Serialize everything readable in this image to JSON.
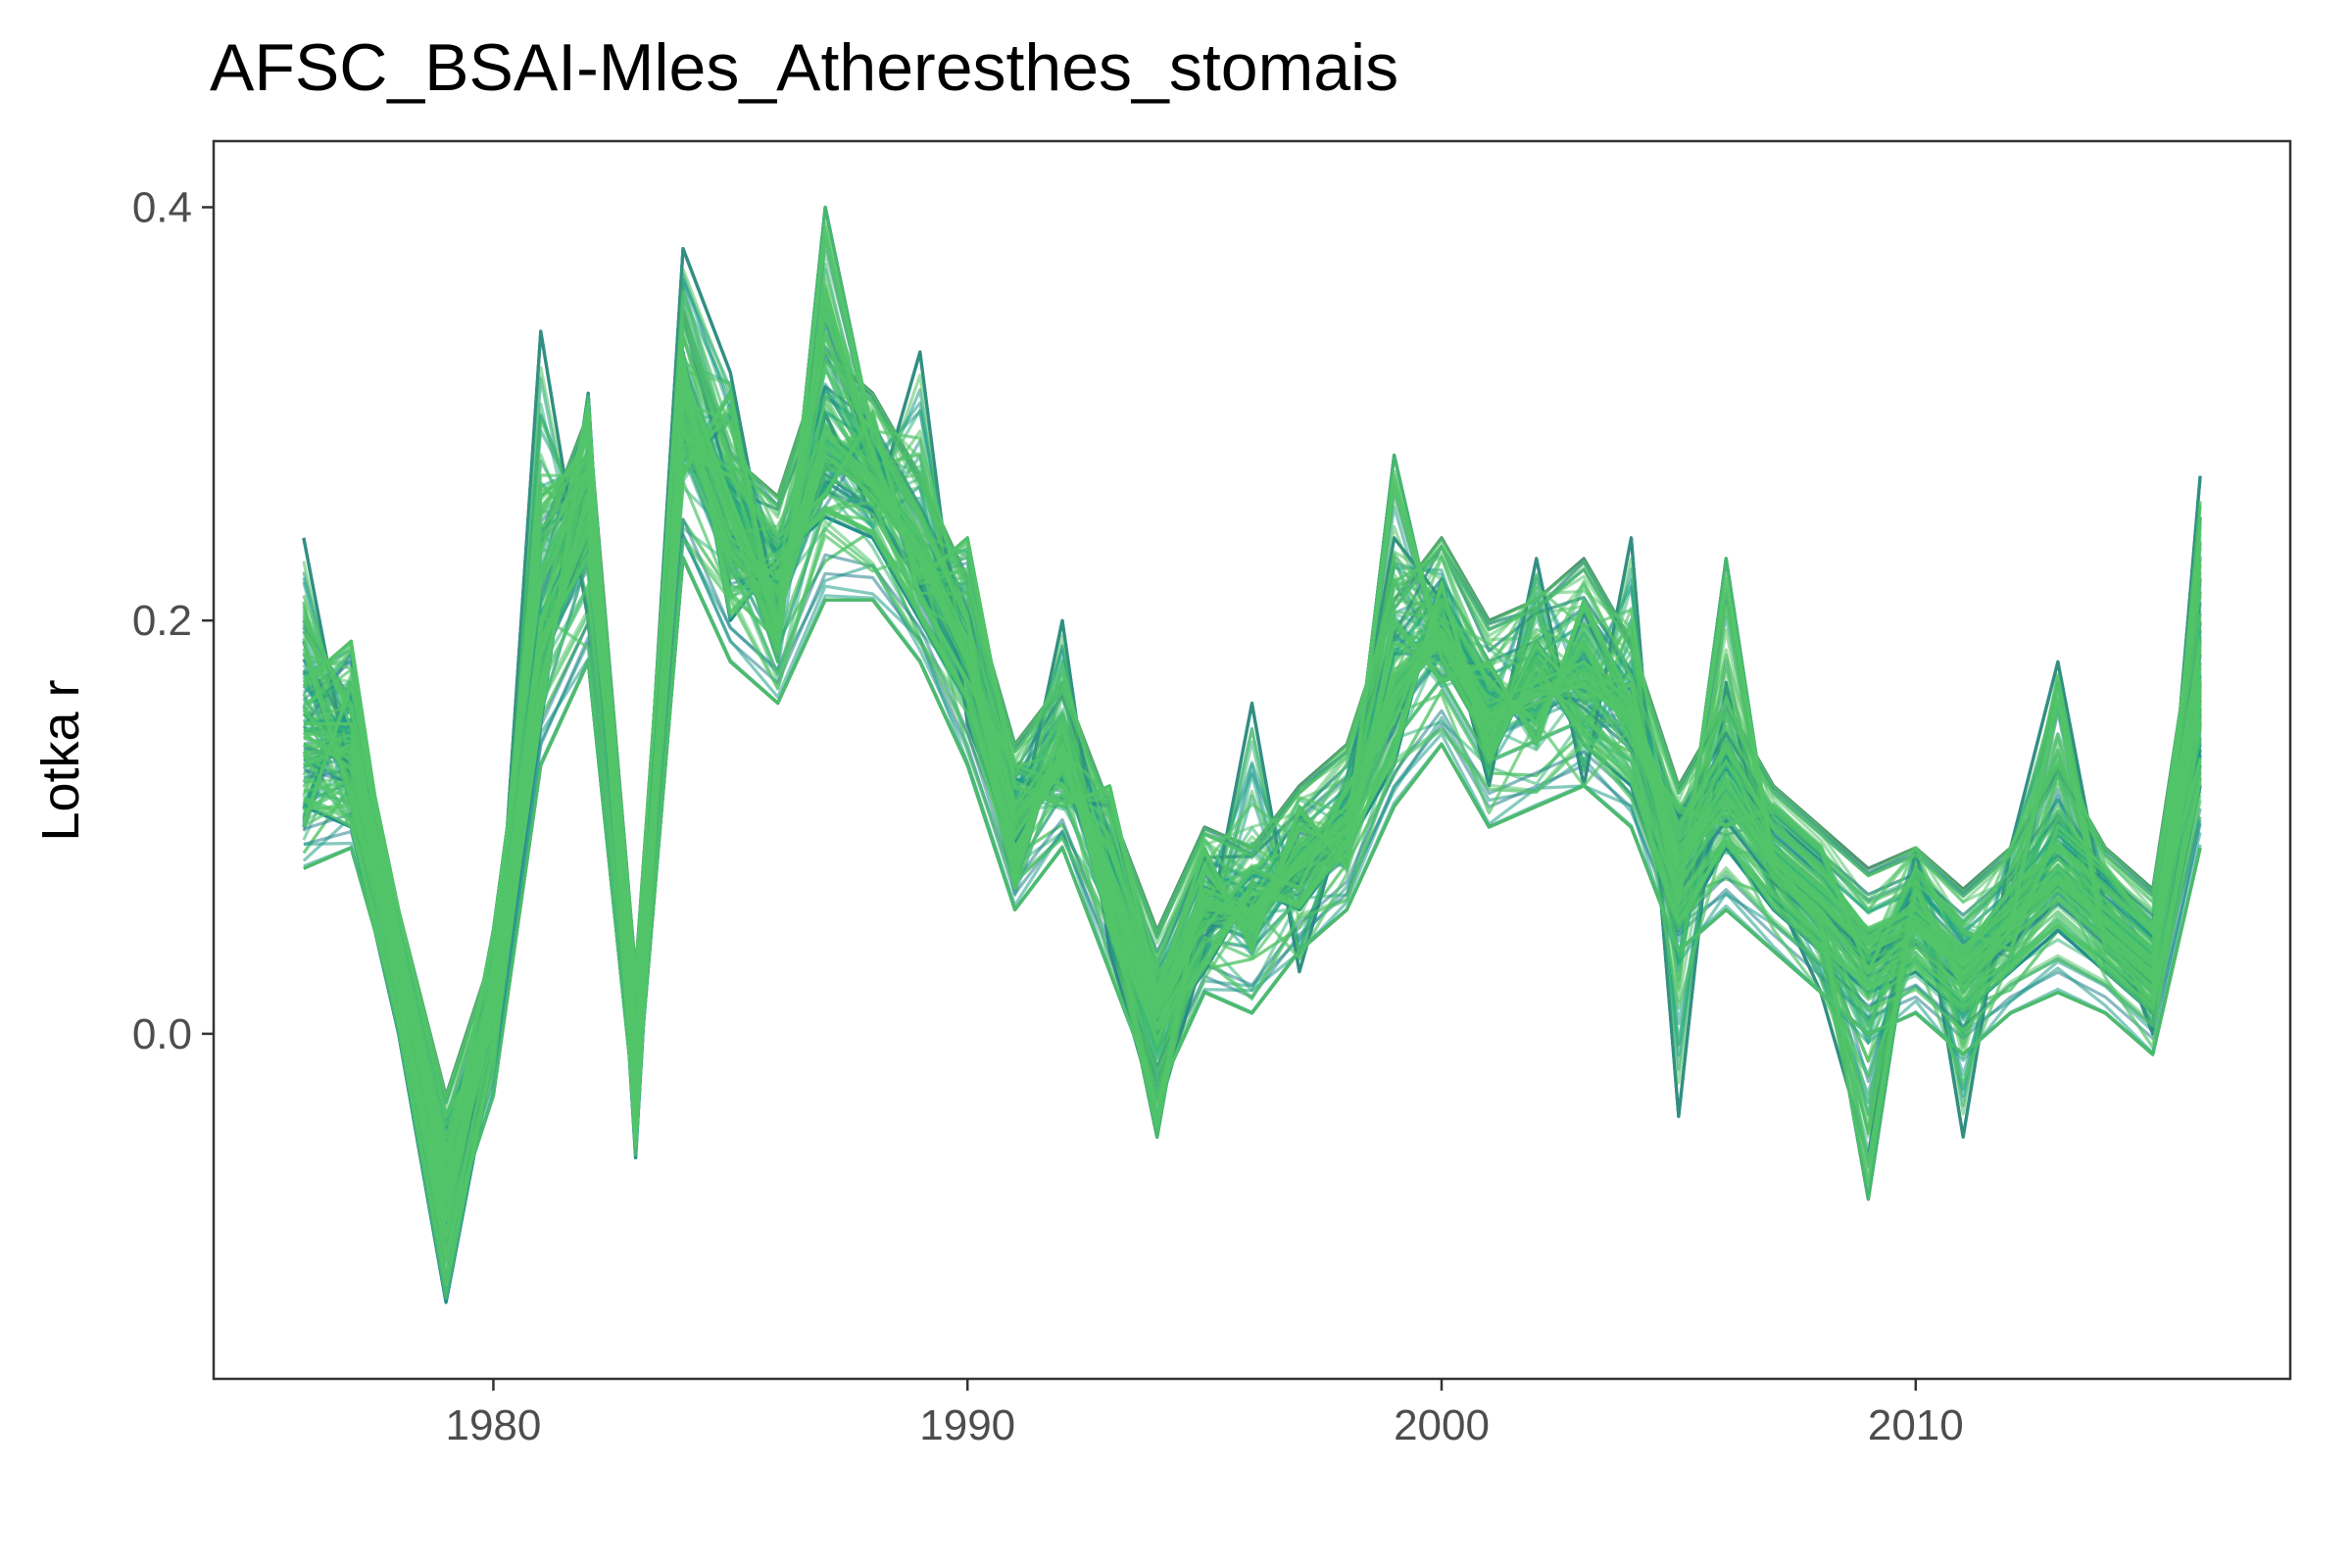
{
  "chart_data": {
    "type": "line",
    "title": "AFSC_BSAI-Mles_Atheresthes_stomais",
    "xlabel": "",
    "ylabel": "Lotka r",
    "xlim": [
      1974.1,
      2017.9
    ],
    "ylim": [
      -0.167,
      0.432
    ],
    "x_ticks": [
      1980,
      1990,
      2000,
      2010
    ],
    "x_tick_labels": [
      "1980",
      "1990",
      "2000",
      "2010"
    ],
    "y_ticks": [
      0.0,
      0.2,
      0.4
    ],
    "y_tick_labels": [
      "0.0",
      "0.2",
      "0.4"
    ],
    "grid": false,
    "legend": "none",
    "series_count": "many (trajectory ensemble)",
    "palette": [
      "#440154",
      "#482878",
      "#3e4989",
      "#31688e",
      "#26828e",
      "#1f9e89",
      "#35b779",
      "#4fc15f",
      "#52c569"
    ],
    "x": [
      1976,
      1977,
      1978,
      1979,
      1980,
      1981,
      1982,
      1983,
      1984,
      1985,
      1986,
      1987,
      1988,
      1989,
      1990,
      1991,
      1992,
      1993,
      1994,
      1995,
      1996,
      1997,
      1998,
      1999,
      2000,
      2001,
      2002,
      2003,
      2004,
      2005,
      2006,
      2007,
      2008,
      2009,
      2010,
      2011,
      2012,
      2013,
      2014,
      2015,
      2016
    ],
    "series": [
      {
        "values": [
          0.14,
          0.13,
          0.035,
          -0.06,
          0.01,
          0.18,
          0.24,
          -0.005,
          0.29,
          0.23,
          0.21,
          0.275,
          0.265,
          0.23,
          0.18,
          0.1,
          0.13,
          0.07,
          0.01,
          0.06,
          0.05,
          0.08,
          0.1,
          0.16,
          0.19,
          0.15,
          0.16,
          0.17,
          0.15,
          0.08,
          0.11,
          0.08,
          0.06,
          0.04,
          0.05,
          0.03,
          0.05,
          0.07,
          0.05,
          0.03,
          0.15
        ]
      },
      {
        "values": [
          0.2,
          0.16,
          0.06,
          -0.03,
          0.04,
          0.24,
          0.3,
          0.03,
          0.35,
          0.28,
          0.26,
          0.33,
          0.31,
          0.27,
          0.22,
          0.14,
          0.17,
          0.11,
          0.05,
          0.1,
          0.09,
          0.12,
          0.14,
          0.21,
          0.24,
          0.2,
          0.21,
          0.23,
          0.19,
          0.12,
          0.16,
          0.12,
          0.1,
          0.08,
          0.09,
          0.07,
          0.09,
          0.13,
          0.09,
          0.07,
          0.22
        ]
      },
      {
        "values": [
          0.08,
          0.09,
          0.01,
          -0.1,
          -0.03,
          0.13,
          0.18,
          -0.04,
          0.23,
          0.18,
          0.16,
          0.21,
          0.21,
          0.18,
          0.13,
          0.06,
          0.09,
          0.03,
          -0.03,
          0.02,
          0.01,
          0.04,
          0.06,
          0.11,
          0.14,
          0.1,
          0.11,
          0.12,
          0.1,
          0.04,
          0.06,
          0.04,
          0.02,
          0.0,
          0.01,
          -0.01,
          0.01,
          0.02,
          0.01,
          -0.01,
          0.09
        ]
      },
      {
        "values": [
          0.24,
          0.12,
          0.02,
          -0.12,
          0.0,
          0.34,
          0.2,
          0.01,
          0.38,
          0.32,
          0.2,
          0.3,
          0.25,
          0.33,
          0.15,
          0.09,
          0.2,
          0.04,
          -0.04,
          0.04,
          0.16,
          0.03,
          0.11,
          0.24,
          0.21,
          0.12,
          0.23,
          0.12,
          0.24,
          -0.04,
          0.17,
          0.07,
          0.02,
          -0.06,
          0.09,
          -0.05,
          0.09,
          0.18,
          0.06,
          0.0,
          0.27
        ]
      },
      {
        "values": [
          0.17,
          0.19,
          0.04,
          -0.08,
          0.03,
          0.26,
          0.28,
          0.0,
          0.27,
          0.31,
          0.19,
          0.36,
          0.28,
          0.22,
          0.24,
          0.12,
          0.11,
          0.12,
          0.02,
          0.09,
          0.04,
          0.11,
          0.08,
          0.2,
          0.17,
          0.18,
          0.14,
          0.21,
          0.16,
          0.1,
          0.14,
          0.1,
          0.08,
          0.05,
          0.06,
          0.04,
          0.07,
          0.09,
          0.07,
          0.05,
          0.19
        ]
      },
      {
        "values": [
          0.11,
          0.1,
          0.0,
          -0.13,
          -0.01,
          0.15,
          0.31,
          -0.06,
          0.33,
          0.2,
          0.23,
          0.25,
          0.24,
          0.2,
          0.16,
          0.08,
          0.14,
          0.05,
          0.0,
          0.03,
          0.07,
          0.06,
          0.09,
          0.13,
          0.22,
          0.13,
          0.18,
          0.14,
          0.12,
          0.05,
          0.09,
          0.06,
          0.04,
          0.02,
          0.03,
          0.01,
          0.03,
          0.05,
          0.03,
          0.01,
          0.12
        ]
      },
      {
        "values": [
          0.15,
          0.15,
          0.05,
          -0.05,
          0.02,
          0.2,
          0.25,
          -0.01,
          0.3,
          0.24,
          0.22,
          0.29,
          0.27,
          0.24,
          0.19,
          0.11,
          0.14,
          0.08,
          0.02,
          0.07,
          0.06,
          0.09,
          0.11,
          0.17,
          0.2,
          0.16,
          0.17,
          0.18,
          0.16,
          0.09,
          0.12,
          0.09,
          0.07,
          0.05,
          0.06,
          0.04,
          0.06,
          0.08,
          0.06,
          0.04,
          0.16
        ]
      },
      {
        "values": [
          0.19,
          0.11,
          0.03,
          -0.07,
          0.05,
          0.22,
          0.27,
          -0.02,
          0.31,
          0.25,
          0.18,
          0.4,
          0.29,
          0.25,
          0.2,
          0.07,
          0.15,
          0.06,
          -0.05,
          0.08,
          0.05,
          0.1,
          0.09,
          0.28,
          0.18,
          0.14,
          0.19,
          0.16,
          0.17,
          0.06,
          0.23,
          0.08,
          0.05,
          -0.08,
          0.07,
          0.02,
          0.05,
          0.17,
          0.04,
          0.02,
          0.25
        ]
      },
      {
        "values": [
          0.1,
          0.17,
          0.06,
          -0.04,
          0.0,
          0.19,
          0.23,
          0.02,
          0.28,
          0.27,
          0.24,
          0.26,
          0.3,
          0.21,
          0.17,
          0.13,
          0.12,
          0.09,
          0.03,
          0.05,
          0.08,
          0.07,
          0.12,
          0.15,
          0.21,
          0.17,
          0.15,
          0.19,
          0.14,
          0.11,
          0.1,
          0.11,
          0.09,
          0.03,
          0.08,
          0.05,
          0.04,
          0.1,
          0.08,
          0.05,
          0.13
        ]
      },
      {
        "values": [
          0.13,
          0.14,
          0.02,
          -0.09,
          0.01,
          0.17,
          0.26,
          -0.03,
          0.32,
          0.26,
          0.2,
          0.28,
          0.26,
          0.23,
          0.18,
          0.09,
          0.13,
          0.07,
          0.01,
          0.06,
          0.06,
          0.08,
          0.1,
          0.16,
          0.19,
          0.15,
          0.16,
          0.17,
          0.15,
          0.08,
          0.11,
          0.08,
          0.06,
          0.03,
          0.05,
          0.03,
          0.05,
          0.07,
          0.05,
          0.03,
          0.17
        ]
      }
    ]
  }
}
